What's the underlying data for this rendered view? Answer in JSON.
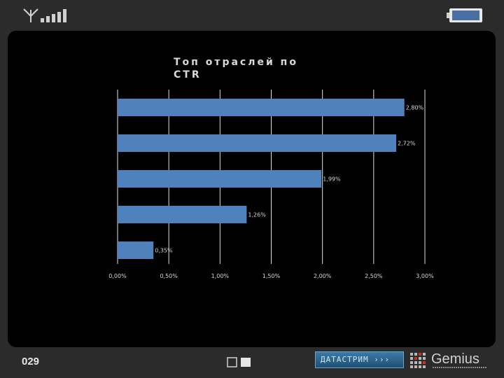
{
  "slide": {
    "number": "029"
  },
  "logos": {
    "datastream": "ДАТАСТРИМ ›››",
    "gemius": "Gemius"
  },
  "chart_data": {
    "type": "bar",
    "orientation": "horizontal",
    "title": "Топ отраслей по CTR",
    "categories": [
      "",
      "",
      "",
      "",
      ""
    ],
    "values": [
      2.8,
      2.72,
      1.99,
      1.26,
      0.35
    ],
    "value_labels": [
      "2,80%",
      "2,72%",
      "1,99%",
      "1,26%",
      "0,35%"
    ],
    "x_ticks": [
      "0,00%",
      "0,50%",
      "1,00%",
      "1,50%",
      "2,00%",
      "2,50%",
      "3,00%"
    ],
    "xlim": [
      0,
      3
    ],
    "xlabel": "",
    "ylabel": "",
    "grid": true,
    "bar_color": "#4f81bd"
  }
}
